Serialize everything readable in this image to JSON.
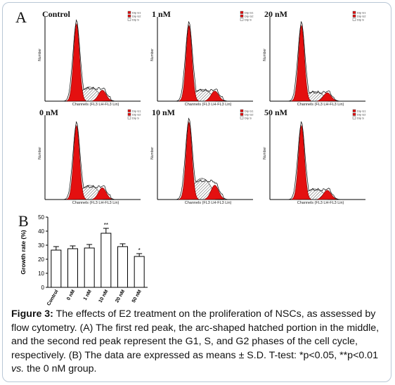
{
  "panel_a_letter": "A",
  "panel_b_letter": "B",
  "histograms": [
    {
      "title": "Control",
      "xlabel": "Channels (FL3 LH-FL3 Lin)",
      "ylabel": "Number",
      "legend": [
        "Dip G1",
        "Dip G2",
        "Dip S"
      ],
      "g1_peak": 0.92,
      "s_level": 0.12,
      "g2_peak": 0.13
    },
    {
      "title": "1 nM",
      "xlabel": "Channels (FL3 LH-FL3 Lin)",
      "ylabel": "Number",
      "legend": [
        "Dip G1",
        "Dip G2",
        "Dip S"
      ],
      "g1_peak": 0.9,
      "s_level": 0.1,
      "g2_peak": 0.12
    },
    {
      "title": "20 nM",
      "xlabel": "Channels (FL3 LH-FL3 Lin)",
      "ylabel": "Number",
      "legend": [
        "Dip G1",
        "Dip G2",
        "Dip S"
      ],
      "g1_peak": 0.9,
      "s_level": 0.08,
      "g2_peak": 0.1
    },
    {
      "title": "0 nM",
      "xlabel": "Channels (FL3 LH-FL3 Lin)",
      "ylabel": "Number",
      "legend": [
        "Dip G1",
        "Dip G2",
        "Dip S"
      ],
      "g1_peak": 0.88,
      "s_level": 0.12,
      "g2_peak": 0.14
    },
    {
      "title": "10 nM",
      "xlabel": "Channels (FL3 LH-FL3 Lin)",
      "ylabel": "Number",
      "legend": [
        "Dip G1",
        "Dip G2",
        "Dip S"
      ],
      "g1_peak": 0.92,
      "s_level": 0.18,
      "g2_peak": 0.17
    },
    {
      "title": "50 nM",
      "xlabel": "Channels (FL3 LH-FL3 Lin)",
      "ylabel": "Number",
      "legend": [
        "Dip G1",
        "Dip G2",
        "Dip S"
      ],
      "g1_peak": 0.88,
      "s_level": 0.09,
      "g2_peak": 0.11
    }
  ],
  "chart_data": {
    "type": "bar",
    "categories": [
      "Control",
      "0 nM",
      "1 nM",
      "10 nM",
      "20 nM",
      "50 nM"
    ],
    "values": [
      26.5,
      27.5,
      28,
      38.5,
      29,
      22
    ],
    "errors": [
      2.5,
      2,
      2.5,
      3.5,
      2,
      2
    ],
    "annotations": [
      "",
      "",
      "",
      "**",
      "",
      "*"
    ],
    "ylabel": "Growth rate (%)",
    "ylim": [
      0,
      50
    ],
    "yticks": [
      0,
      10,
      20,
      30,
      40,
      50
    ],
    "bar_color": "#ffffff"
  },
  "caption": {
    "label": "Figure 3:",
    "p1": " The effects of E2 treatment on the proliferation of NSCs, as assessed by flow cytometry. (A) The first red peak, the arc-shaped hatched portion in the middle, and the second red peak represent the G1, S, and G2 phases of the cell cycle, respectively. (B) The data are expressed as means ± S.D. T-test: *p<0.05, **p<0.01 ",
    "vs": "vs.",
    "p2": " the 0 nM group."
  },
  "colors": {
    "peak": "#e41010",
    "border": "#b9c7d6"
  }
}
